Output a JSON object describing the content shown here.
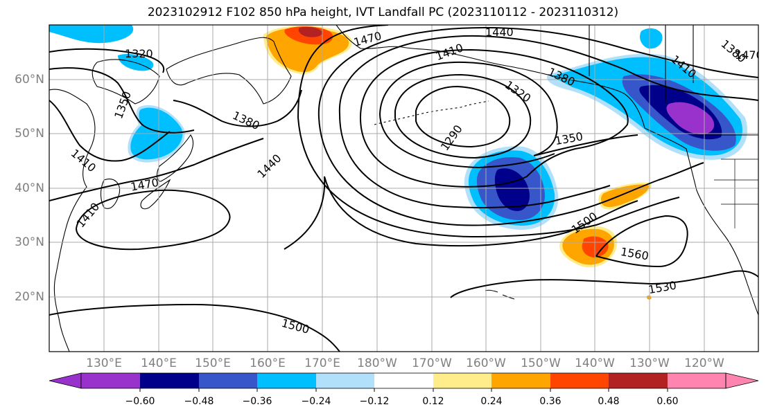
{
  "title": "2023102912 F102 850 hPa height, IVT Landfall PC (2023110112 - 2023110312)",
  "map": {
    "lat_labels": [
      "60°N",
      "50°N",
      "40°N",
      "30°N",
      "20°N"
    ],
    "lon_labels": [
      "130°E",
      "140°E",
      "150°E",
      "160°E",
      "170°E",
      "180°W",
      "170°W",
      "160°W",
      "150°W",
      "140°W",
      "130°W",
      "120°W"
    ],
    "contour_labels": [
      "1320",
      "1350",
      "1380",
      "1410",
      "1440",
      "1470",
      "1290",
      "1320",
      "1350",
      "1380",
      "1410",
      "1440",
      "1470",
      "1500",
      "1530",
      "1560",
      "1410",
      "1380",
      "1470",
      "1500",
      "1440",
      "1410"
    ],
    "colors": {
      "neg_060": "#9932cc",
      "neg_048": "#00008b",
      "neg_036": "#3656c9",
      "neg_024": "#00bfff",
      "neg_012": "#b0e0fa",
      "neutral": "#ffffff",
      "pos_012": "#ffec8b",
      "pos_024": "#ffa500",
      "pos_036": "#ff4500",
      "pos_048": "#b22222",
      "pos_060": "#ff85b0"
    }
  },
  "colorbar": {
    "ticks": [
      "−0.60",
      "−0.48",
      "−0.36",
      "−0.24",
      "−0.12",
      "0.12",
      "0.24",
      "0.36",
      "0.48",
      "0.60"
    ]
  }
}
